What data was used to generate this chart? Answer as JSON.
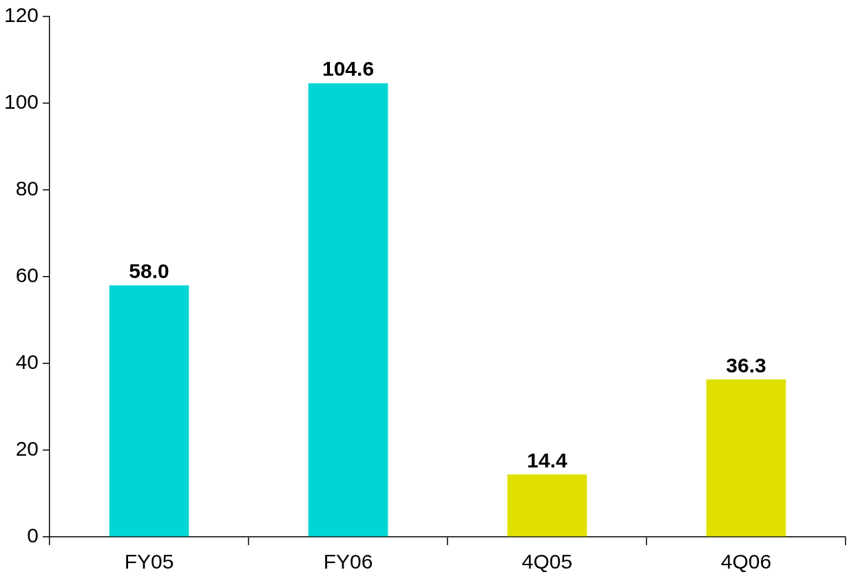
{
  "chart_data": {
    "type": "bar",
    "categories": [
      "FY05",
      "FY06",
      "4Q05",
      "4Q06"
    ],
    "values": [
      58.0,
      104.6,
      14.4,
      36.3
    ],
    "colors": [
      "#00d4d4",
      "#00d4d4",
      "#e0e000",
      "#e0e000"
    ],
    "value_labels": [
      "58.0",
      "104.6",
      "14.4",
      "36.3"
    ],
    "ylim": [
      0,
      120
    ],
    "yticks": [
      0,
      20,
      40,
      60,
      80,
      100,
      120
    ],
    "grid": false,
    "legend": false
  }
}
